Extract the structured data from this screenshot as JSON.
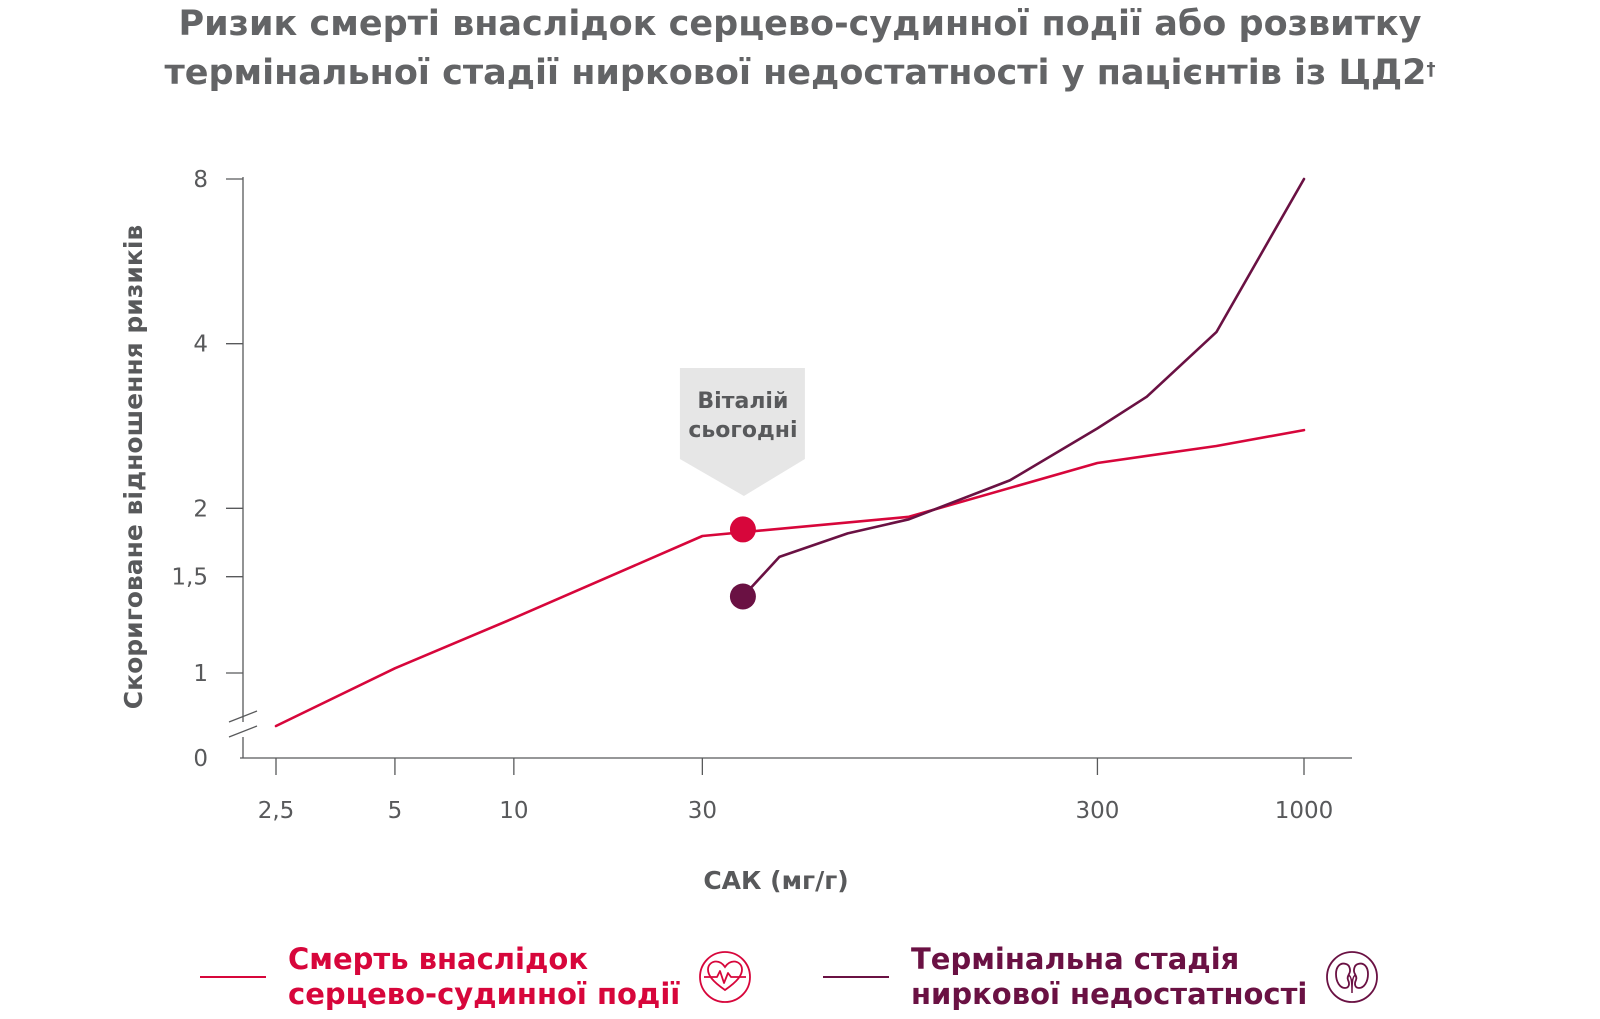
{
  "title": {
    "line1": "Ризик смерті внаслідок серцево-судинної події або розвитку",
    "line2": "термінальної стадії ниркової недостатності у пацієнтів із ЦД2",
    "mark": "†"
  },
  "chart_data": {
    "type": "line",
    "xlabel": "САК (мг/г)",
    "ylabel": "Скориговане відношення ризиків",
    "x_scale": "log",
    "x_ticks": [
      {
        "value": 2.5,
        "label": "2,5"
      },
      {
        "value": 5,
        "label": "5"
      },
      {
        "value": 10,
        "label": "10"
      },
      {
        "value": 30,
        "label": "30"
      },
      {
        "value": 300,
        "label": "300"
      },
      {
        "value": 1000,
        "label": "1000"
      }
    ],
    "y_scale": "log",
    "y_axis_break": true,
    "y_ticks": [
      {
        "value": 1,
        "label": "1"
      },
      {
        "value": 1.5,
        "label": "1,5"
      },
      {
        "value": 2,
        "label": "2"
      },
      {
        "value": 4,
        "label": "4"
      },
      {
        "value": 8,
        "label": "8"
      }
    ],
    "y_zero_label": "0",
    "series": [
      {
        "name": "Смерть внаслідок серцево-судинної події",
        "color": "#d7063b",
        "points": [
          [
            2.5,
            0.8
          ],
          [
            5,
            1.02
          ],
          [
            10,
            1.26
          ],
          [
            30,
            1.78
          ],
          [
            100,
            1.93
          ],
          [
            300,
            2.42
          ],
          [
            600,
            2.6
          ],
          [
            1000,
            2.78
          ]
        ]
      },
      {
        "name": "Термінальна стадія ниркової недостатності",
        "color": "#6a1143",
        "points": [
          [
            38,
            1.38
          ],
          [
            47,
            1.63
          ],
          [
            70,
            1.8
          ],
          [
            100,
            1.91
          ],
          [
            180,
            2.25
          ],
          [
            300,
            2.8
          ],
          [
            400,
            3.2
          ],
          [
            600,
            4.2
          ],
          [
            1000,
            8.0
          ]
        ]
      }
    ],
    "markers": [
      {
        "x": 38,
        "y": 1.83,
        "color": "#d7063b"
      },
      {
        "x": 38,
        "y": 1.38,
        "color": "#6a1143"
      }
    ],
    "annotation": {
      "x": 38,
      "line1": "Віталій",
      "line2": "сьогодні"
    },
    "legend_position": "bottom"
  },
  "legend": {
    "cv": {
      "line1": "Смерть внаслідок",
      "line2": "серцево-судинної події",
      "color": "#d7063b",
      "icon": "heart-pulse-icon"
    },
    "renal": {
      "line1": "Термінальна стадія",
      "line2": "ниркової недостатності",
      "color": "#6a1143",
      "icon": "kidneys-icon"
    }
  },
  "colors": {
    "axis": "#58595b",
    "title": "#636466",
    "callout": "#e6e6e6"
  }
}
